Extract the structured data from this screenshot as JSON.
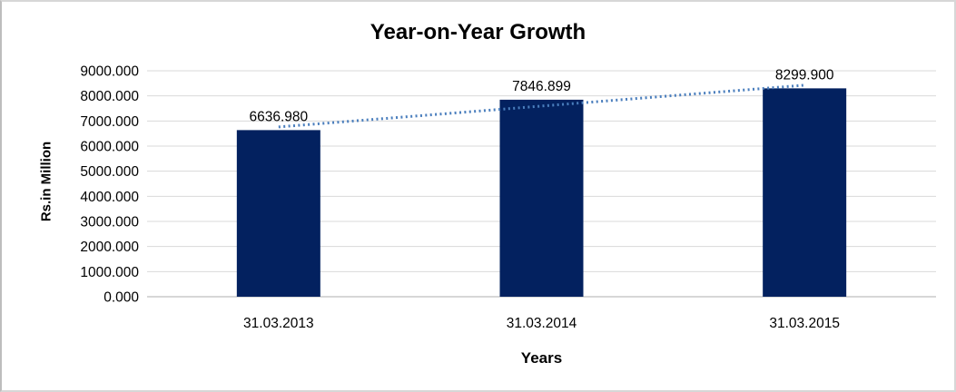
{
  "window": {
    "background": "#ffffff",
    "frame_border_color": "#d7d7d7"
  },
  "chart_data": {
    "type": "bar",
    "title": "Year-on-Year Growth",
    "xlabel": "Years",
    "ylabel": "Rs.in Million",
    "categories": [
      "31.03.2013",
      "31.03.2014",
      "31.03.2015"
    ],
    "series": [
      {
        "name": "Rs.in Million",
        "values": [
          6636.98,
          7846.899,
          8299.9
        ]
      }
    ],
    "data_labels": [
      "6636.980",
      "7846.899",
      "8299.900"
    ],
    "y_ticks": [
      "9000.000",
      "8000.000",
      "7000.000",
      "6000.000",
      "5000.000",
      "4000.000",
      "3000.000",
      "2000.000",
      "1000.000",
      "0.000"
    ],
    "ylim": [
      0,
      9000
    ],
    "grid": true,
    "legend": "none",
    "bar_color": "#03215f",
    "trendline": {
      "style": "dotted",
      "shape": "linear",
      "color": "#4a7ebd"
    },
    "gridline_color": "#d9d9d9",
    "axis_line_color": "#bfbfbf",
    "text_color": "#000000"
  }
}
